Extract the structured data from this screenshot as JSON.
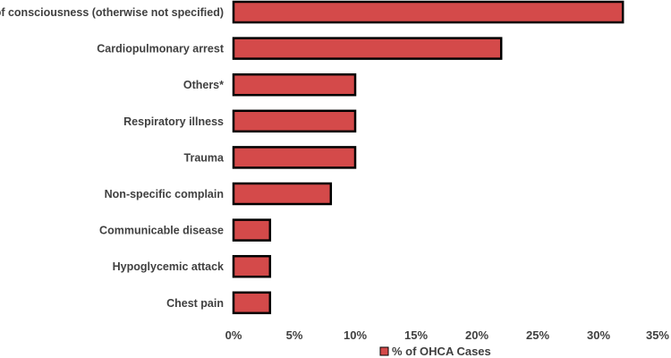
{
  "chart_data": {
    "type": "bar",
    "orientation": "horizontal",
    "categories": [
      "Loss of consciousness (otherwise not specified)",
      "Cardiopulmonary arrest",
      "Others*",
      "Respiratory illness",
      "Trauma",
      "Non-specific complain",
      "Communicable disease",
      "Hypoglycemic attack",
      "Chest pain"
    ],
    "series": [
      {
        "name": "% of OHCA Cases",
        "values": [
          32,
          22,
          10,
          10,
          10,
          8,
          3,
          3,
          3
        ],
        "color": "#d44a4a"
      }
    ],
    "xlim": [
      0,
      35
    ],
    "xticks": [
      0,
      5,
      10,
      15,
      20,
      25,
      30,
      35
    ],
    "xtick_labels": [
      "0%",
      "5%",
      "10%",
      "15%",
      "20%",
      "25%",
      "30%",
      "35%"
    ],
    "grid": false,
    "legend": "bottom",
    "bar_edge_color": "#000000",
    "title": "",
    "xlabel": "",
    "ylabel": ""
  }
}
